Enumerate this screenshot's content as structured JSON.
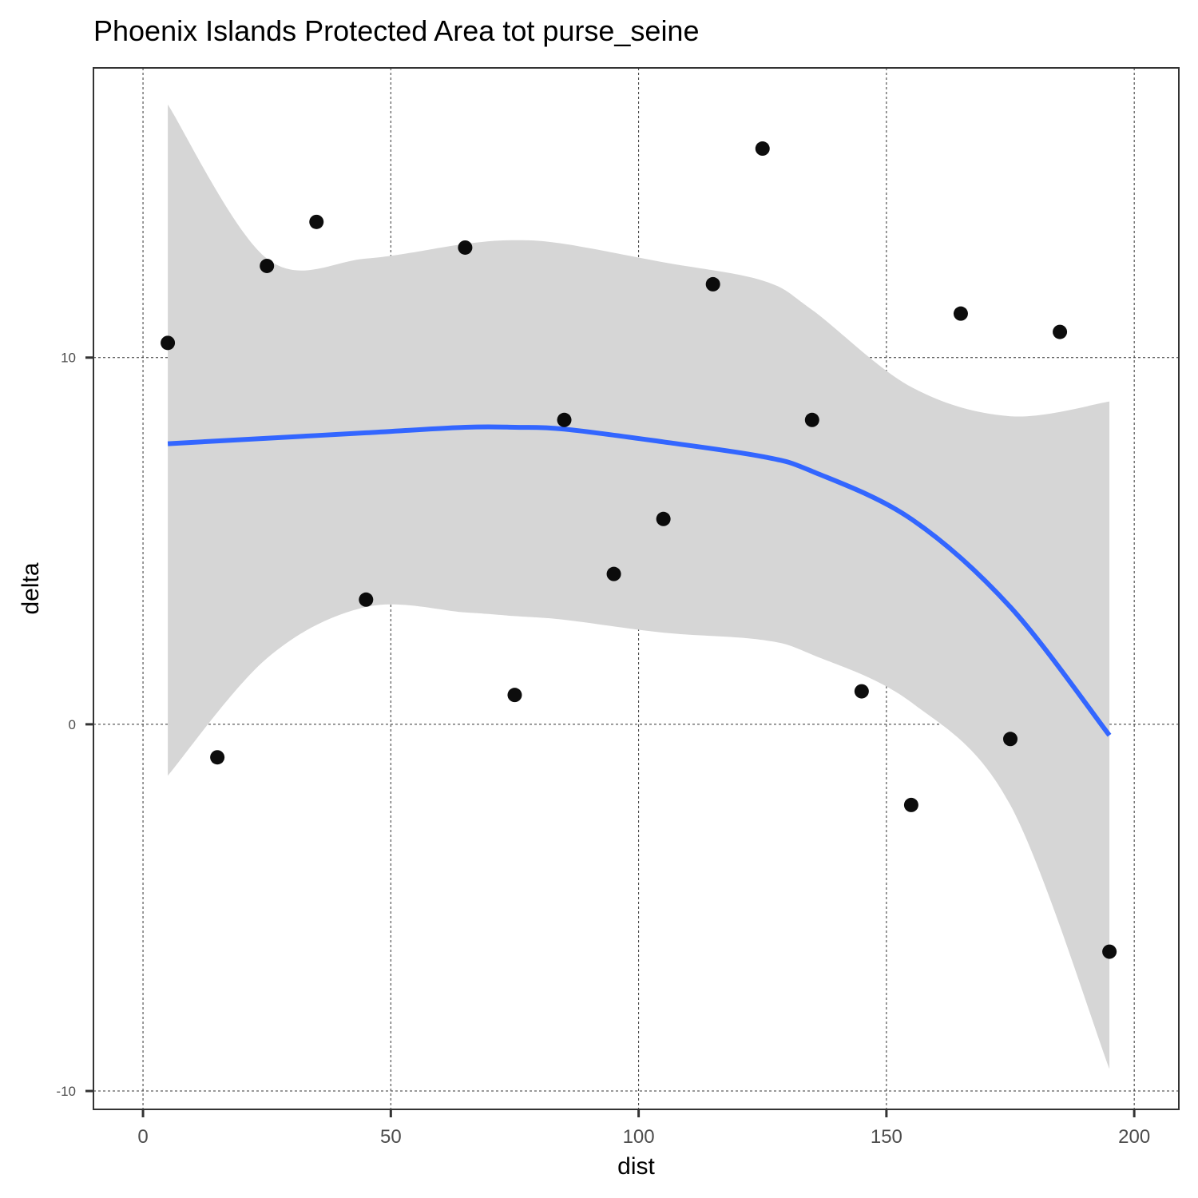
{
  "chart_data": {
    "type": "scatter",
    "title": "Phoenix Islands Protected Area tot purse_seine",
    "xlabel": "dist",
    "ylabel": "delta",
    "xlim": [
      -10,
      209
    ],
    "ylim": [
      -10.5,
      17.9
    ],
    "x_ticks": [
      0,
      50,
      100,
      150,
      200
    ],
    "y_ticks": [
      -10,
      0,
      10
    ],
    "x_tick_labels": [
      "0",
      "50",
      "100",
      "150",
      "200"
    ],
    "y_tick_labels": [
      "-10",
      "0",
      "10"
    ],
    "grid": true,
    "points": [
      {
        "x": 5,
        "y": 10.4
      },
      {
        "x": 15,
        "y": -0.9
      },
      {
        "x": 25,
        "y": 12.5
      },
      {
        "x": 35,
        "y": 13.7
      },
      {
        "x": 45,
        "y": 3.4
      },
      {
        "x": 65,
        "y": 13.0
      },
      {
        "x": 75,
        "y": 0.8
      },
      {
        "x": 85,
        "y": 8.3
      },
      {
        "x": 95,
        "y": 4.1
      },
      {
        "x": 105,
        "y": 5.6
      },
      {
        "x": 115,
        "y": 12.0
      },
      {
        "x": 125,
        "y": 15.7
      },
      {
        "x": 135,
        "y": 8.3
      },
      {
        "x": 145,
        "y": 0.9
      },
      {
        "x": 155,
        "y": -2.2
      },
      {
        "x": 165,
        "y": 11.2
      },
      {
        "x": 175,
        "y": -0.4
      },
      {
        "x": 185,
        "y": 10.7
      },
      {
        "x": 195,
        "y": -6.2
      }
    ],
    "smooth": {
      "method": "loess",
      "color": "#3366FF",
      "band_color": "#D6D6D6",
      "x": [
        5,
        25,
        45,
        65,
        75,
        85,
        105,
        125,
        135,
        155,
        175,
        195
      ],
      "fit": [
        7.65,
        7.8,
        7.95,
        8.1,
        8.1,
        8.05,
        7.7,
        7.3,
        6.9,
        5.6,
        3.2,
        -0.3
      ],
      "lower": [
        -1.4,
        1.8,
        3.2,
        3.05,
        2.95,
        2.85,
        2.5,
        2.3,
        1.9,
        0.6,
        -2.2,
        -9.4
      ],
      "upper": [
        16.9,
        12.7,
        12.7,
        13.1,
        13.2,
        13.1,
        12.6,
        12.1,
        11.3,
        9.2,
        8.4,
        8.8
      ]
    },
    "point_color": "#000000",
    "panel_border_color": "#333333",
    "grid_color": "#333333"
  }
}
